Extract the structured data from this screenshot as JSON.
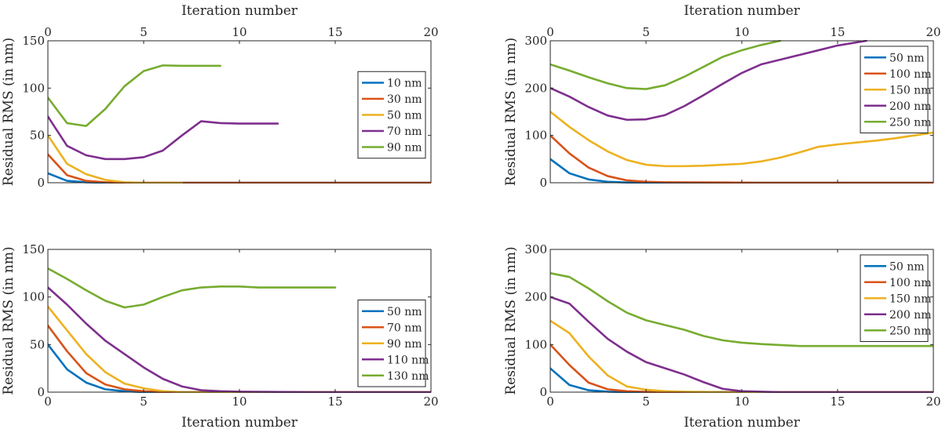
{
  "chart_data": [
    {
      "type": "line",
      "title": "",
      "xlabel": "Iteration number",
      "ylabel": "Residual RMS (in nm)",
      "xlabel_position": "top",
      "xlim": [
        0,
        20
      ],
      "ylim": [
        0,
        150
      ],
      "xticks": [
        0,
        5,
        10,
        15,
        20
      ],
      "yticks": [
        0,
        50,
        100,
        150
      ],
      "legend_position": "right",
      "series": [
        {
          "name": "10 nm",
          "color": "#0072BD",
          "points": [
            [
              0,
              10
            ],
            [
              1,
              2
            ],
            [
              2,
              0.5
            ],
            [
              3,
              0
            ],
            [
              20,
              0
            ]
          ]
        },
        {
          "name": "30 nm",
          "color": "#D95319",
          "points": [
            [
              0,
              30
            ],
            [
              1,
              8
            ],
            [
              2,
              2
            ],
            [
              3,
              0.5
            ],
            [
              4,
              0
            ],
            [
              20,
              0
            ]
          ]
        },
        {
          "name": "50 nm",
          "color": "#EDB120",
          "points": [
            [
              0,
              50
            ],
            [
              1,
              20
            ],
            [
              2,
              9
            ],
            [
              3,
              3
            ],
            [
              4,
              0.5
            ],
            [
              5,
              0
            ],
            [
              7,
              0
            ]
          ]
        },
        {
          "name": "70 nm",
          "color": "#7E2F8E",
          "points": [
            [
              0,
              70
            ],
            [
              1,
              39
            ],
            [
              2,
              29
            ],
            [
              3,
              25
            ],
            [
              4,
              25
            ],
            [
              5,
              27
            ],
            [
              6,
              34
            ],
            [
              7,
              50
            ],
            [
              8,
              65
            ],
            [
              9,
              63
            ],
            [
              10,
              62.5
            ],
            [
              12,
              62.5
            ]
          ]
        },
        {
          "name": "90 nm",
          "color": "#77AC30",
          "points": [
            [
              0,
              90
            ],
            [
              1,
              63
            ],
            [
              2,
              60
            ],
            [
              3,
              78
            ],
            [
              4,
              102
            ],
            [
              5,
              118
            ],
            [
              6,
              124
            ],
            [
              7,
              123.5
            ],
            [
              8,
              123.5
            ],
            [
              9,
              123.5
            ]
          ]
        }
      ]
    },
    {
      "type": "line",
      "title": "",
      "xlabel": "Iteration number",
      "ylabel": "Residual RMS (in nm)",
      "xlabel_position": "top",
      "xlim": [
        0,
        20
      ],
      "ylim": [
        0,
        300
      ],
      "xticks": [
        0,
        5,
        10,
        15,
        20
      ],
      "yticks": [
        0,
        100,
        200,
        300
      ],
      "legend_position": "top-right",
      "series": [
        {
          "name": "50 nm",
          "color": "#0072BD",
          "points": [
            [
              0,
              50
            ],
            [
              1,
              20
            ],
            [
              2,
              7
            ],
            [
              3,
              2
            ],
            [
              4,
              0.5
            ],
            [
              5,
              0
            ],
            [
              20,
              0
            ]
          ]
        },
        {
          "name": "100 nm",
          "color": "#D95319",
          "points": [
            [
              0,
              100
            ],
            [
              1,
              62
            ],
            [
              2,
              32
            ],
            [
              3,
              14
            ],
            [
              4,
              5
            ],
            [
              5,
              2
            ],
            [
              6,
              1
            ],
            [
              9,
              0.5
            ],
            [
              11,
              0
            ],
            [
              20,
              0
            ]
          ]
        },
        {
          "name": "150 nm",
          "color": "#EDB120",
          "points": [
            [
              0,
              150
            ],
            [
              1,
              118
            ],
            [
              2,
              90
            ],
            [
              3,
              66
            ],
            [
              4,
              48
            ],
            [
              5,
              38
            ],
            [
              6,
              35
            ],
            [
              7,
              35
            ],
            [
              8,
              36
            ],
            [
              9,
              38
            ],
            [
              10,
              40
            ],
            [
              11,
              45
            ],
            [
              12,
              53
            ],
            [
              13,
              64
            ],
            [
              14,
              76
            ],
            [
              15,
              81
            ],
            [
              16,
              85
            ],
            [
              17,
              89
            ],
            [
              18,
              94
            ],
            [
              19,
              100
            ],
            [
              20,
              106
            ]
          ]
        },
        {
          "name": "200 nm",
          "color": "#7E2F8E",
          "points": [
            [
              0,
              200
            ],
            [
              1,
              182
            ],
            [
              2,
              160
            ],
            [
              3,
              142
            ],
            [
              4,
              133
            ],
            [
              5,
              134
            ],
            [
              6,
              143
            ],
            [
              7,
              162
            ],
            [
              8,
              185
            ],
            [
              9,
              209
            ],
            [
              10,
              232
            ],
            [
              11,
              250
            ],
            [
              12,
              260
            ],
            [
              13,
              270
            ],
            [
              14,
              280
            ],
            [
              15,
              290
            ],
            [
              16.5,
              300
            ]
          ]
        },
        {
          "name": "250 nm",
          "color": "#77AC30",
          "points": [
            [
              0,
              250
            ],
            [
              1,
              237
            ],
            [
              2,
              223
            ],
            [
              3,
              210
            ],
            [
              4,
              200
            ],
            [
              5,
              198
            ],
            [
              6,
              206
            ],
            [
              7,
              224
            ],
            [
              8,
              245
            ],
            [
              9,
              266
            ],
            [
              10,
              280
            ],
            [
              11,
              291
            ],
            [
              12,
              300
            ]
          ]
        }
      ]
    },
    {
      "type": "line",
      "title": "",
      "xlabel": "Iteration number",
      "ylabel": "Residual RMS (in nm)",
      "xlabel_position": "bottom",
      "xlim": [
        0,
        20
      ],
      "ylim": [
        0,
        150
      ],
      "xticks": [
        0,
        5,
        10,
        15,
        20
      ],
      "yticks": [
        0,
        50,
        100,
        150
      ],
      "legend_position": "bottom-right",
      "series": [
        {
          "name": "50 nm",
          "color": "#0072BD",
          "points": [
            [
              0,
              50
            ],
            [
              1,
              24
            ],
            [
              2,
              10
            ],
            [
              3,
              3
            ],
            [
              4,
              1
            ],
            [
              5,
              0
            ],
            [
              20,
              0
            ]
          ]
        },
        {
          "name": "70 nm",
          "color": "#D95319",
          "points": [
            [
              0,
              70
            ],
            [
              1,
              43
            ],
            [
              2,
              20
            ],
            [
              3,
              8
            ],
            [
              4,
              3
            ],
            [
              5,
              1
            ],
            [
              6,
              0
            ],
            [
              20,
              0
            ]
          ]
        },
        {
          "name": "90 nm",
          "color": "#EDB120",
          "points": [
            [
              0,
              90
            ],
            [
              1,
              65
            ],
            [
              2,
              40
            ],
            [
              3,
              21
            ],
            [
              4,
              9
            ],
            [
              5,
              4
            ],
            [
              6,
              1
            ],
            [
              7,
              0
            ],
            [
              20,
              0
            ]
          ]
        },
        {
          "name": "110 nm",
          "color": "#7E2F8E",
          "points": [
            [
              0,
              110
            ],
            [
              1,
              92
            ],
            [
              2,
              72
            ],
            [
              3,
              54
            ],
            [
              4,
              40
            ],
            [
              5,
              26
            ],
            [
              6,
              14
            ],
            [
              7,
              6
            ],
            [
              8,
              2
            ],
            [
              9,
              1
            ],
            [
              10,
              0.5
            ],
            [
              14,
              0
            ],
            [
              20,
              0
            ]
          ]
        },
        {
          "name": "130 nm",
          "color": "#77AC30",
          "points": [
            [
              0,
              130
            ],
            [
              1,
              119
            ],
            [
              2,
              107
            ],
            [
              3,
              96
            ],
            [
              4,
              89
            ],
            [
              5,
              92
            ],
            [
              6,
              100
            ],
            [
              7,
              107
            ],
            [
              8,
              110
            ],
            [
              9,
              111
            ],
            [
              10,
              111
            ],
            [
              11,
              110
            ],
            [
              12,
              110
            ],
            [
              13,
              110
            ],
            [
              14,
              110
            ],
            [
              15,
              110
            ]
          ]
        }
      ]
    },
    {
      "type": "line",
      "title": "",
      "xlabel": "Iteration number",
      "ylabel": "Residual RMS (in nm)",
      "xlabel_position": "bottom",
      "xlim": [
        0,
        20
      ],
      "ylim": [
        0,
        300
      ],
      "xticks": [
        0,
        5,
        10,
        15,
        20
      ],
      "yticks": [
        0,
        100,
        200,
        300
      ],
      "legend_position": "top-right",
      "series": [
        {
          "name": "50 nm",
          "color": "#0072BD",
          "points": [
            [
              0,
              50
            ],
            [
              1,
              15
            ],
            [
              2,
              4
            ],
            [
              3,
              1
            ],
            [
              4,
              0
            ],
            [
              20,
              0
            ]
          ]
        },
        {
          "name": "100 nm",
          "color": "#D95319",
          "points": [
            [
              0,
              100
            ],
            [
              1,
              57
            ],
            [
              2,
              20
            ],
            [
              3,
              6
            ],
            [
              4,
              2
            ],
            [
              5,
              0.5
            ],
            [
              6,
              0
            ],
            [
              20,
              0
            ]
          ]
        },
        {
          "name": "150 nm",
          "color": "#EDB120",
          "points": [
            [
              0,
              150
            ],
            [
              1,
              124
            ],
            [
              2,
              75
            ],
            [
              3,
              35
            ],
            [
              4,
              12
            ],
            [
              5,
              5
            ],
            [
              6,
              2
            ],
            [
              7,
              1
            ],
            [
              9,
              0
            ],
            [
              20,
              0
            ]
          ]
        },
        {
          "name": "200 nm",
          "color": "#7E2F8E",
          "points": [
            [
              0,
              200
            ],
            [
              1,
              186
            ],
            [
              2,
              148
            ],
            [
              3,
              112
            ],
            [
              4,
              85
            ],
            [
              5,
              63
            ],
            [
              6,
              50
            ],
            [
              7,
              37
            ],
            [
              8,
              21
            ],
            [
              9,
              7
            ],
            [
              10,
              2
            ],
            [
              11,
              1
            ],
            [
              12,
              0
            ],
            [
              20,
              0
            ]
          ]
        },
        {
          "name": "250 nm",
          "color": "#77AC30",
          "points": [
            [
              0,
              250
            ],
            [
              1,
              242
            ],
            [
              2,
              218
            ],
            [
              3,
              191
            ],
            [
              4,
              167
            ],
            [
              5,
              151
            ],
            [
              6,
              141
            ],
            [
              7,
              131
            ],
            [
              8,
              118
            ],
            [
              9,
              109
            ],
            [
              10,
              104
            ],
            [
              11,
              101
            ],
            [
              12,
              99
            ],
            [
              13,
              97
            ],
            [
              14,
              97
            ],
            [
              15,
              97
            ],
            [
              16,
              97
            ],
            [
              17,
              97
            ],
            [
              18,
              97
            ],
            [
              19,
              97
            ],
            [
              20,
              97
            ]
          ]
        }
      ]
    }
  ]
}
